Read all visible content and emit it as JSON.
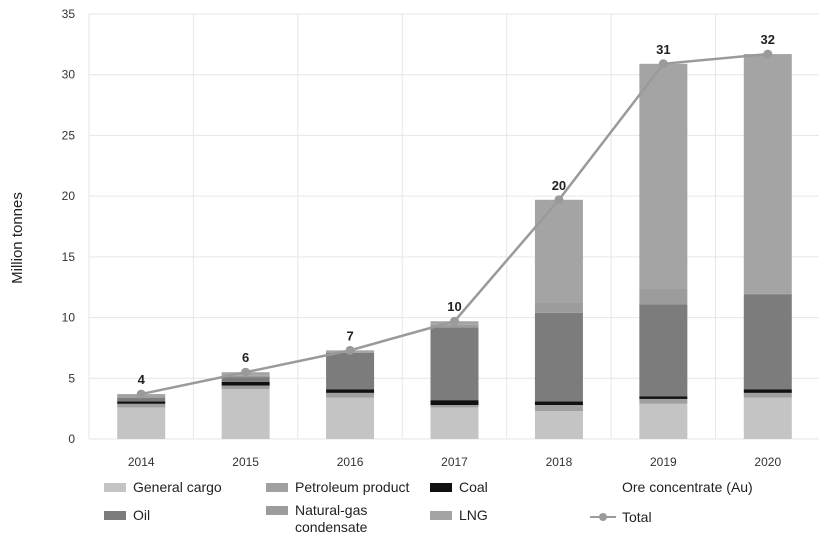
{
  "chart_data": {
    "type": "bar",
    "stacked": true,
    "categories": [
      "2014",
      "2015",
      "2016",
      "2017",
      "2018",
      "2019",
      "2020"
    ],
    "series": [
      {
        "name": "General cargo",
        "color": "#c4c4c4",
        "values": [
          2.6,
          4.1,
          3.4,
          2.6,
          2.3,
          2.9,
          3.4
        ]
      },
      {
        "name": "Petroleum product",
        "color": "#a0a0a0",
        "values": [
          0.3,
          0.3,
          0.4,
          0.2,
          0.5,
          0.4,
          0.4
        ]
      },
      {
        "name": "Coal",
        "color": "#111111",
        "values": [
          0.2,
          0.3,
          0.3,
          0.4,
          0.3,
          0.2,
          0.3
        ]
      },
      {
        "name": "Oil",
        "color": "#7c7c7c",
        "values": [
          0.3,
          0.4,
          3.0,
          6.0,
          7.3,
          7.6,
          7.8
        ]
      },
      {
        "name": "Natural-gas condensate",
        "color": "#9c9c9c",
        "values": [
          0.1,
          0.1,
          0.1,
          0.2,
          0.8,
          1.3,
          0.1
        ]
      },
      {
        "name": "LNG",
        "color": "#a4a4a4",
        "values": [
          0.2,
          0.3,
          0.1,
          0.3,
          8.5,
          18.5,
          19.7
        ]
      },
      {
        "name": "Ore concentrate (Au)",
        "color": "#b4b4b4",
        "values": [
          0,
          0,
          0,
          0,
          0,
          0,
          0
        ]
      }
    ],
    "total": {
      "name": "Total",
      "color": "#9a9a9a",
      "values": [
        3.7,
        5.5,
        7.3,
        9.7,
        19.7,
        30.9,
        31.7
      ],
      "labels": [
        "4",
        "6",
        "7",
        "10",
        "20",
        "31",
        "32"
      ]
    },
    "ylabel": "Million tonnes",
    "xlabel": "",
    "ylim": [
      0,
      35
    ],
    "yticks": [
      0,
      5,
      10,
      15,
      20,
      25,
      30,
      35
    ],
    "grid": true,
    "legend_position": "bottom"
  }
}
